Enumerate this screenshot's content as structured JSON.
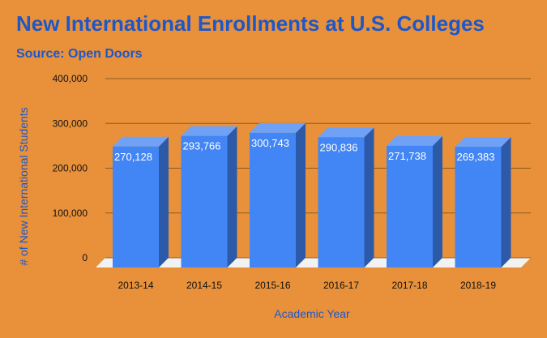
{
  "chart_data": {
    "type": "bar",
    "title": "New International Enrollments at U.S. Colleges",
    "subtitle": "Source: Open Doors",
    "xlabel": "Academic Year",
    "ylabel": "# of New International Students",
    "categories": [
      "2013-14",
      "2014-15",
      "2015-16",
      "2016-17",
      "2017-18",
      "2018-19"
    ],
    "values": [
      270128,
      293766,
      300743,
      290836,
      271738,
      269383
    ],
    "value_labels": [
      "270,128",
      "293,766",
      "300,743",
      "290,836",
      "271,738",
      "269,383"
    ],
    "ylim": [
      0,
      400000
    ],
    "yticks": [
      0,
      100000,
      200000,
      300000,
      400000
    ],
    "ytick_labels": [
      "0",
      "100,000",
      "200,000",
      "300,000",
      "400,000"
    ],
    "grid": true,
    "legend": "none"
  },
  "colors": {
    "background": "#E8913A",
    "bar_front": "#4285F4",
    "bar_top": "#6FA2F7",
    "bar_side": "#2C5AA8",
    "floor": "#F2F2F2",
    "gridline": "#8B5A1F",
    "title": "#1E57C8"
  }
}
